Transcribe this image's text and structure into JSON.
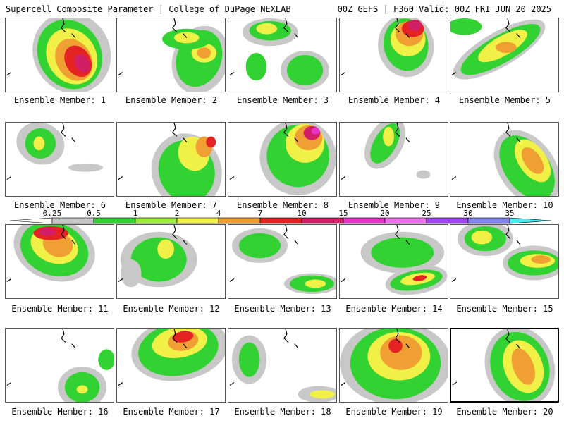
{
  "header": {
    "left_title": "Supercell Composite Parameter | College of DuPage NEXLAB",
    "right_title": "00Z GEFS | F360 Valid: 00Z FRI JUN 20 2025"
  },
  "member_caption_prefix": "Ensemble Member:",
  "members": [
    {
      "id": 1,
      "label": "Ensemble Member: 1"
    },
    {
      "id": 2,
      "label": "Ensemble Member: 2"
    },
    {
      "id": 3,
      "label": "Ensemble Member: 3"
    },
    {
      "id": 4,
      "label": "Ensemble Member: 4"
    },
    {
      "id": 5,
      "label": "Ensemble Member: 5"
    },
    {
      "id": 6,
      "label": "Ensemble Member: 6"
    },
    {
      "id": 7,
      "label": "Ensemble Member: 7"
    },
    {
      "id": 8,
      "label": "Ensemble Member: 8"
    },
    {
      "id": 9,
      "label": "Ensemble Member: 9"
    },
    {
      "id": 10,
      "label": "Ensemble Member: 10"
    },
    {
      "id": 11,
      "label": "Ensemble Member: 11"
    },
    {
      "id": 12,
      "label": "Ensemble Member: 12"
    },
    {
      "id": 13,
      "label": "Ensemble Member: 13"
    },
    {
      "id": 14,
      "label": "Ensemble Member: 14"
    },
    {
      "id": 15,
      "label": "Ensemble Member: 15"
    },
    {
      "id": 16,
      "label": "Ensemble Member: 16"
    },
    {
      "id": 17,
      "label": "Ensemble Member: 17"
    },
    {
      "id": 18,
      "label": "Ensemble Member: 18"
    },
    {
      "id": 19,
      "label": "Ensemble Member: 19"
    },
    {
      "id": 20,
      "label": "Ensemble Member: 20"
    }
  ],
  "color_scale": {
    "tick_labels": [
      "0.25",
      "0.5",
      "1",
      "2",
      "4",
      "7",
      "10",
      "15",
      "20",
      "25",
      "30",
      "35"
    ],
    "colors": [
      "#c8c8c8",
      "#32d232",
      "#9bf03c",
      "#f0f046",
      "#f0a032",
      "#e62323",
      "#d21e64",
      "#e632c8",
      "#f06ef0",
      "#a046f0",
      "#8282f0",
      "#46f0f0"
    ]
  },
  "selected_member": 20
}
